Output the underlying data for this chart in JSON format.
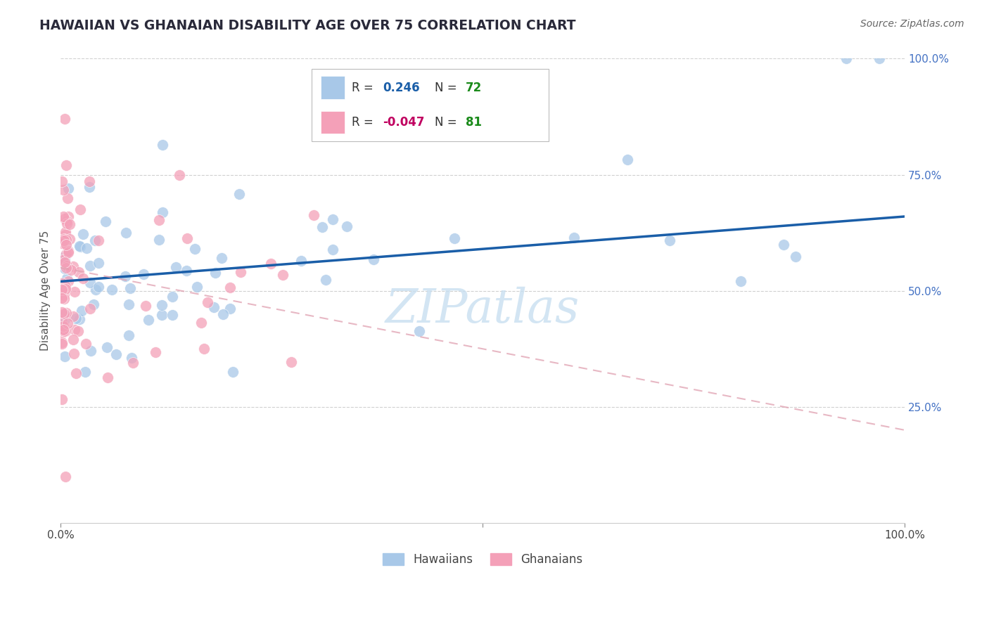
{
  "title": "HAWAIIAN VS GHANAIAN DISABILITY AGE OVER 75 CORRELATION CHART",
  "source": "Source: ZipAtlas.com",
  "ylabel": "Disability Age Over 75",
  "hawaiian_color": "#a8c8e8",
  "ghanaian_color": "#f4a0b8",
  "hawaiian_line_color": "#1a5ea8",
  "ghanaian_line_color": "#e0a0b0",
  "background_color": "#ffffff",
  "grid_color": "#d0d0d0",
  "legend_box_color": "#aaaaaa",
  "r_label_hawaiian": "R =  0.246",
  "n_label_hawaiian": "N = 72",
  "r_label_ghanaian": "R = -0.047",
  "n_label_ghanaian": "N = 81",
  "r_color_hawaiian": "#1a5ea8",
  "n_color_hawaiian": "#1a8a1a",
  "r_color_ghanaian": "#c00060",
  "n_color_ghanaian": "#1a8a1a",
  "watermark": "ZIPatlas",
  "watermark_color": "#c8dff0",
  "xmin": 0.0,
  "xmax": 1.0,
  "ymin": 0.0,
  "ymax": 1.0,
  "yticks": [
    0.25,
    0.5,
    0.75,
    1.0
  ],
  "ytick_labels": [
    "25.0%",
    "50.0%",
    "75.0%",
    "100.0%"
  ],
  "xtick_left": "0.0%",
  "xtick_right": "100.0%",
  "bottom_legend_hawaiians": "Hawaiians",
  "bottom_legend_ghanaians": "Ghanaians"
}
